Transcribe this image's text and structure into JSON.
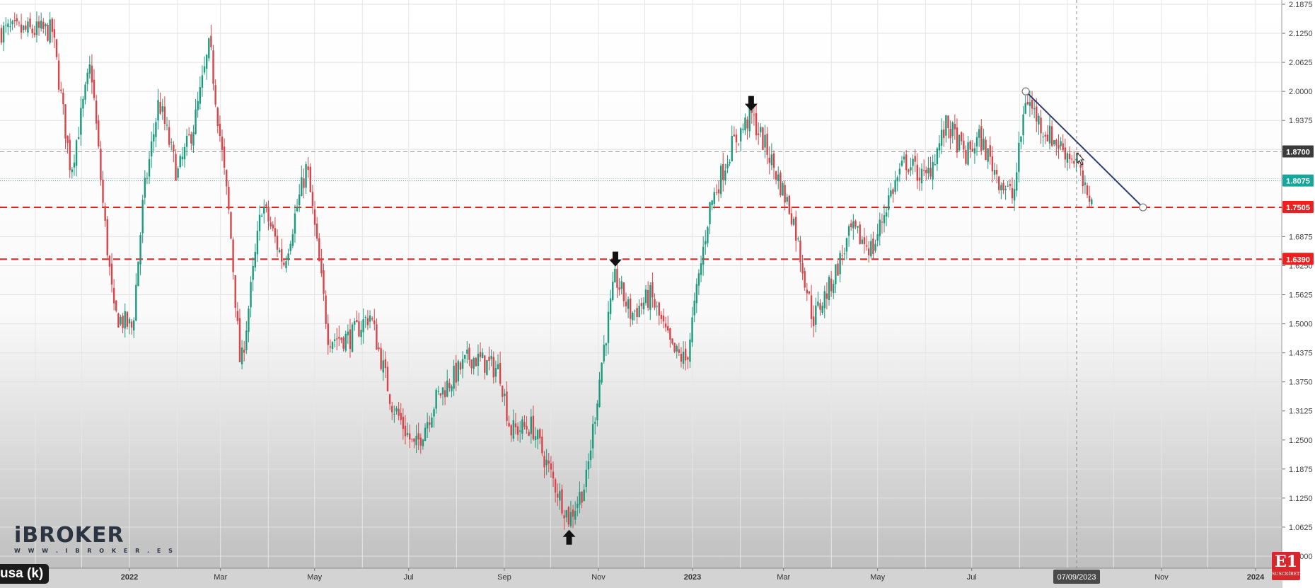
{
  "chart_data": {
    "type": "candlestick",
    "symbol": "usa (k)",
    "y_axis": {
      "side": "right",
      "range": [
        1.0,
        2.1875
      ],
      "ticks": [
        "2.1875",
        "2.1250",
        "2.0625",
        "2.0000",
        "1.9375",
        "1.8750",
        "1.8125",
        "1.7500",
        "1.6875",
        "1.6250",
        "1.5625",
        "1.5000",
        "1.4375",
        "1.3750",
        "1.3125",
        "1.2500",
        "1.1875",
        "1.1250",
        "1.0625",
        "1.0000"
      ]
    },
    "x_axis": {
      "labels": [
        "2022",
        "Mar",
        "May",
        "Jul",
        "Sep",
        "Nov",
        "2023",
        "Mar",
        "May",
        "Jul",
        "07/09/2023",
        "Nov",
        "2024"
      ],
      "highlighted_label": "07/09/2023"
    },
    "price_markers": [
      {
        "label": "1.8700",
        "value": 1.87,
        "style": "dashed-gray",
        "color": "#3b3b3b"
      },
      {
        "label": "1.8075",
        "value": 1.8075,
        "style": "dotted-teal",
        "color": "#14a89a"
      },
      {
        "label": "1.7505",
        "value": 1.7505,
        "style": "dashed-red",
        "color": "#ef1f1f"
      },
      {
        "label": "1.6390",
        "value": 1.639,
        "style": "dashed-red",
        "color": "#ef1f1f"
      }
    ],
    "trendline": {
      "from": [
        "2023-08-05",
        2.0
      ],
      "to": [
        "2023-10-20",
        1.7505
      ],
      "color": "#2e3b72"
    },
    "cursor_crosshair_date": "2023-09-07",
    "annotations": [
      {
        "type": "arrow-down",
        "date": "2023-02-08",
        "value": 1.975
      },
      {
        "type": "arrow-down",
        "date": "2022-11-12",
        "value": 1.64
      },
      {
        "type": "arrow-up",
        "date": "2022-10-13",
        "value": 1.04
      }
    ],
    "candle_colors": {
      "up": "#1a9b7e",
      "down": "#d9444a"
    },
    "path": [
      [
        "2021-11-12",
        2.13
      ],
      [
        "2021-11-24",
        1.83
      ],
      [
        "2021-12-07",
        2.06
      ],
      [
        "2021-12-15",
        1.75
      ],
      [
        "2021-12-22",
        1.52
      ],
      [
        "2022-01-03",
        1.49
      ],
      [
        "2022-01-10",
        1.77
      ],
      [
        "2022-01-20",
        1.98
      ],
      [
        "2022-02-01",
        1.82
      ],
      [
        "2022-02-12",
        1.93
      ],
      [
        "2022-02-22",
        2.1
      ],
      [
        "2022-03-07",
        1.72
      ],
      [
        "2022-03-14",
        1.4
      ],
      [
        "2022-03-28",
        1.76
      ],
      [
        "2022-04-11",
        1.63
      ],
      [
        "2022-04-26",
        1.84
      ],
      [
        "2022-05-10",
        1.47
      ],
      [
        "2022-05-24",
        1.47
      ],
      [
        "2022-06-06",
        1.52
      ],
      [
        "2022-06-20",
        1.33
      ],
      [
        "2022-07-05",
        1.23
      ],
      [
        "2022-07-19",
        1.34
      ],
      [
        "2022-08-10",
        1.43
      ],
      [
        "2022-08-29",
        1.4
      ],
      [
        "2022-09-05",
        1.27
      ],
      [
        "2022-09-19",
        1.28
      ],
      [
        "2022-10-03",
        1.16
      ],
      [
        "2022-10-13",
        1.08
      ],
      [
        "2022-10-24",
        1.16
      ],
      [
        "2022-11-04",
        1.44
      ],
      [
        "2022-11-12",
        1.6
      ],
      [
        "2022-11-22",
        1.52
      ],
      [
        "2022-12-05",
        1.56
      ],
      [
        "2022-12-19",
        1.44
      ],
      [
        "2022-12-28",
        1.42
      ],
      [
        "2023-01-12",
        1.75
      ],
      [
        "2023-01-26",
        1.88
      ],
      [
        "2023-02-08",
        1.95
      ],
      [
        "2023-02-20",
        1.86
      ],
      [
        "2023-03-07",
        1.73
      ],
      [
        "2023-03-20",
        1.51
      ],
      [
        "2023-03-31",
        1.58
      ],
      [
        "2023-04-14",
        1.7
      ],
      [
        "2023-04-28",
        1.66
      ],
      [
        "2023-05-08",
        1.77
      ],
      [
        "2023-05-19",
        1.85
      ],
      [
        "2023-06-01",
        1.81
      ],
      [
        "2023-06-15",
        1.93
      ],
      [
        "2023-06-27",
        1.86
      ],
      [
        "2023-07-06",
        1.9
      ],
      [
        "2023-07-19",
        1.81
      ],
      [
        "2023-07-28",
        1.77
      ],
      [
        "2023-08-05",
        1.99
      ],
      [
        "2023-08-16",
        1.92
      ],
      [
        "2023-08-28",
        1.88
      ],
      [
        "2023-09-07",
        1.85
      ],
      [
        "2023-09-14",
        1.76
      ],
      [
        "2023-09-18",
        1.8
      ]
    ],
    "gridlines": true
  },
  "branding": {
    "logo_text": "iBROKER",
    "logo_url": "W W W . I B R O K E R . E S",
    "badge_mark": "E1",
    "badge_sub": "SUSCRÍBETE"
  }
}
